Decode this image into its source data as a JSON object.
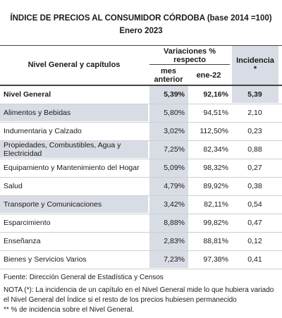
{
  "title_line1": "ÍNDICE DE PRECIOS AL CONSUMIDOR CÓRDOBA (base 2014 =100)",
  "title_line2": "Enero 2023",
  "headers": {
    "chapters": "Nivel General y capítulos",
    "variations": "Variaciones %",
    "variations_sub": "respecto",
    "prev_month": "mes anterior",
    "prev_year": "ene-22",
    "incidence": "Incidencia",
    "incidence_mark": "*"
  },
  "rows": [
    {
      "label": "Nivel General",
      "mes": "5,39%",
      "ene": "92,16%",
      "inc": "5,39",
      "bold": true
    },
    {
      "label": "Alimentos y Bebidas",
      "mes": "5,80%",
      "ene": "94,51%",
      "inc": "2,10"
    },
    {
      "label": "Indumentaria y Calzado",
      "mes": "3,02%",
      "ene": "112,50%",
      "inc": "0,23"
    },
    {
      "label": "Propiedades, Combustibles, Agua y Electricidad",
      "mes": "7,25%",
      "ene": "82,34%",
      "inc": "0,88"
    },
    {
      "label": "Equipamiento y Mantenimiento del Hogar",
      "mes": "5,09%",
      "ene": "98,32%",
      "inc": "0,27"
    },
    {
      "label": "Salud",
      "mes": "4,79%",
      "ene": "89,92%",
      "inc": "0,38"
    },
    {
      "label": "Transporte y Comunicaciones",
      "mes": "3,42%",
      "ene": "82,11%",
      "inc": "0,54"
    },
    {
      "label": "Esparcimiento",
      "mes": "8,88%",
      "ene": "99,82%",
      "inc": "0,47"
    },
    {
      "label": "Enseñanza",
      "mes": "2,83%",
      "ene": "88,81%",
      "inc": "0,12"
    },
    {
      "label": "Bienes y Servicios Varios",
      "mes": "7,23%",
      "ene": "97,38%",
      "inc": "0,41"
    }
  ],
  "footer": {
    "source": "Fuente: Dirección General de Estadística y Censos",
    "note": "NOTA (*): La incidencia de un capítulo en el Nivel General mide lo que hubiera variado el Nivel General del Índice si el resto de los precios hubiesen permanecido",
    "note2": "** % de incidencia sobre el Nivel General."
  }
}
